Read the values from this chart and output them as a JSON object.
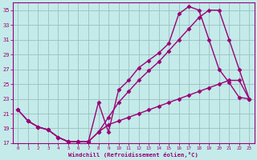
{
  "xlabel": "Windchill (Refroidissement éolien,°C)",
  "bg_color": "#c5eaea",
  "line_color": "#990077",
  "grid_color": "#9bbfbf",
  "xlim": [
    -0.5,
    23.5
  ],
  "ylim": [
    17,
    36
  ],
  "yticks": [
    17,
    19,
    21,
    23,
    25,
    27,
    29,
    31,
    33,
    35
  ],
  "xticks": [
    0,
    1,
    2,
    3,
    4,
    5,
    6,
    7,
    8,
    9,
    10,
    11,
    12,
    13,
    14,
    15,
    16,
    17,
    18,
    19,
    20,
    21,
    22,
    23
  ],
  "line1_x": [
    0,
    1,
    2,
    3,
    4,
    5,
    6,
    7,
    8,
    9,
    10,
    11,
    12,
    13,
    14,
    15,
    16,
    17,
    18,
    19,
    20,
    21,
    22,
    23
  ],
  "line1_y": [
    21.5,
    20.0,
    19.2,
    18.8,
    17.8,
    17.2,
    17.2,
    17.2,
    22.5,
    18.5,
    24.2,
    25.5,
    27.2,
    28.2,
    29.2,
    30.5,
    34.5,
    35.5,
    35.0,
    31.0,
    27.0,
    25.2,
    23.2,
    23.0
  ],
  "line2_x": [
    0,
    1,
    2,
    3,
    4,
    5,
    6,
    7,
    8,
    9,
    10,
    11,
    12,
    13,
    14,
    15,
    16,
    17,
    18,
    19,
    20,
    21,
    22,
    23
  ],
  "line2_y": [
    21.5,
    20.0,
    19.2,
    18.8,
    17.8,
    17.2,
    17.2,
    17.2,
    18.5,
    20.5,
    22.5,
    24.0,
    25.5,
    26.8,
    28.0,
    29.5,
    31.0,
    32.5,
    34.0,
    35.0,
    35.0,
    31.0,
    27.0,
    23.0
  ],
  "line3_x": [
    1,
    2,
    3,
    4,
    5,
    6,
    7,
    8,
    9,
    10,
    11,
    12,
    13,
    14,
    15,
    16,
    17,
    18,
    19,
    20,
    21,
    22,
    23
  ],
  "line3_y": [
    20.0,
    19.2,
    18.8,
    17.8,
    17.2,
    17.2,
    17.2,
    18.5,
    19.5,
    20.0,
    20.5,
    21.0,
    21.5,
    22.0,
    22.5,
    23.0,
    23.5,
    24.0,
    24.5,
    25.0,
    25.5,
    25.5,
    23.0
  ],
  "marker": "D",
  "markersize": 2.5,
  "linewidth": 1.0
}
